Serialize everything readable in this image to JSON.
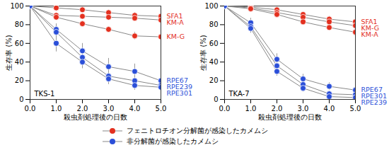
{
  "chart_data": [
    {
      "type": "line",
      "title": "TKS-1",
      "x_label": "殺虫剤処理後の日数",
      "y_label": "生存率 (%)",
      "x": [
        0,
        1,
        2,
        3,
        4,
        5
      ],
      "xlim": [
        0,
        5
      ],
      "xticks": [
        0,
        1,
        2,
        3,
        4,
        5
      ],
      "ylim": [
        0,
        100
      ],
      "yticks": [
        0,
        20,
        40,
        60,
        80,
        100
      ],
      "marker": "circle",
      "series": [
        {
          "name": "SFA1",
          "color": "#e3301f",
          "values": [
            100,
            98,
            96,
            93,
            90,
            89
          ],
          "errors": [
            0,
            1,
            1,
            2,
            3,
            3
          ]
        },
        {
          "name": "KM-A",
          "color": "#e3301f",
          "values": [
            100,
            90,
            89,
            88,
            87,
            85
          ],
          "errors": [
            0,
            1,
            2,
            2,
            3,
            3
          ]
        },
        {
          "name": "KM-G",
          "color": "#e3301f",
          "values": [
            100,
            88,
            81,
            75,
            68,
            67
          ],
          "errors": [
            0,
            2,
            3,
            3,
            4,
            4
          ]
        },
        {
          "name": "RPE67",
          "color": "#2b4fd8",
          "values": [
            100,
            75,
            52,
            35,
            30,
            20
          ],
          "errors": [
            0,
            6,
            8,
            9,
            8,
            6
          ]
        },
        {
          "name": "RPE239",
          "color": "#2b4fd8",
          "values": [
            100,
            72,
            45,
            25,
            20,
            15
          ],
          "errors": [
            0,
            6,
            8,
            7,
            6,
            5
          ]
        },
        {
          "name": "RPE301",
          "color": "#2b4fd8",
          "values": [
            100,
            60,
            40,
            22,
            15,
            13
          ],
          "errors": [
            0,
            9,
            7,
            6,
            5,
            5
          ]
        }
      ]
    },
    {
      "type": "line",
      "title": "TKA-7",
      "x_label": "殺虫剤処理後の日数",
      "y_label": "生存率 (%)",
      "x": [
        0,
        1,
        2,
        3,
        4,
        5
      ],
      "xlim": [
        0,
        5
      ],
      "xticks": [
        0,
        1,
        2,
        3,
        4,
        5
      ],
      "ylim": [
        0,
        100
      ],
      "yticks": [
        0,
        20,
        40,
        60,
        80,
        100
      ],
      "marker": "circle",
      "series": [
        {
          "name": "SFA1",
          "color": "#e3301f",
          "values": [
            100,
            99,
            96,
            91,
            86,
            83
          ],
          "errors": [
            0,
            1,
            2,
            2,
            3,
            3
          ]
        },
        {
          "name": "KM-G",
          "color": "#e3301f",
          "values": [
            100,
            98,
            93,
            88,
            83,
            79
          ],
          "errors": [
            0,
            1,
            2,
            3,
            3,
            3
          ]
        },
        {
          "name": "KM-A",
          "color": "#e3301f",
          "values": [
            100,
            97,
            91,
            83,
            77,
            72
          ],
          "errors": [
            0,
            1,
            2,
            3,
            3,
            3
          ]
        },
        {
          "name": "RPE67",
          "color": "#2b4fd8",
          "values": [
            100,
            82,
            43,
            22,
            14,
            10
          ],
          "errors": [
            0,
            5,
            6,
            5,
            4,
            3
          ]
        },
        {
          "name": "RPE301",
          "color": "#2b4fd8",
          "values": [
            100,
            78,
            36,
            16,
            6,
            5
          ],
          "errors": [
            0,
            5,
            6,
            4,
            3,
            2
          ]
        },
        {
          "name": "RPE239",
          "color": "#2b4fd8",
          "values": [
            100,
            76,
            30,
            12,
            3,
            2
          ],
          "errors": [
            0,
            5,
            5,
            4,
            2,
            2
          ]
        }
      ]
    }
  ],
  "groups": [
    {
      "name": "フェニトロチオン分解菌が感染したカメムシ",
      "color": "#e3301f"
    },
    {
      "name": "非分解菌が感染したカメムシ",
      "color": "#2b4fd8"
    }
  ]
}
